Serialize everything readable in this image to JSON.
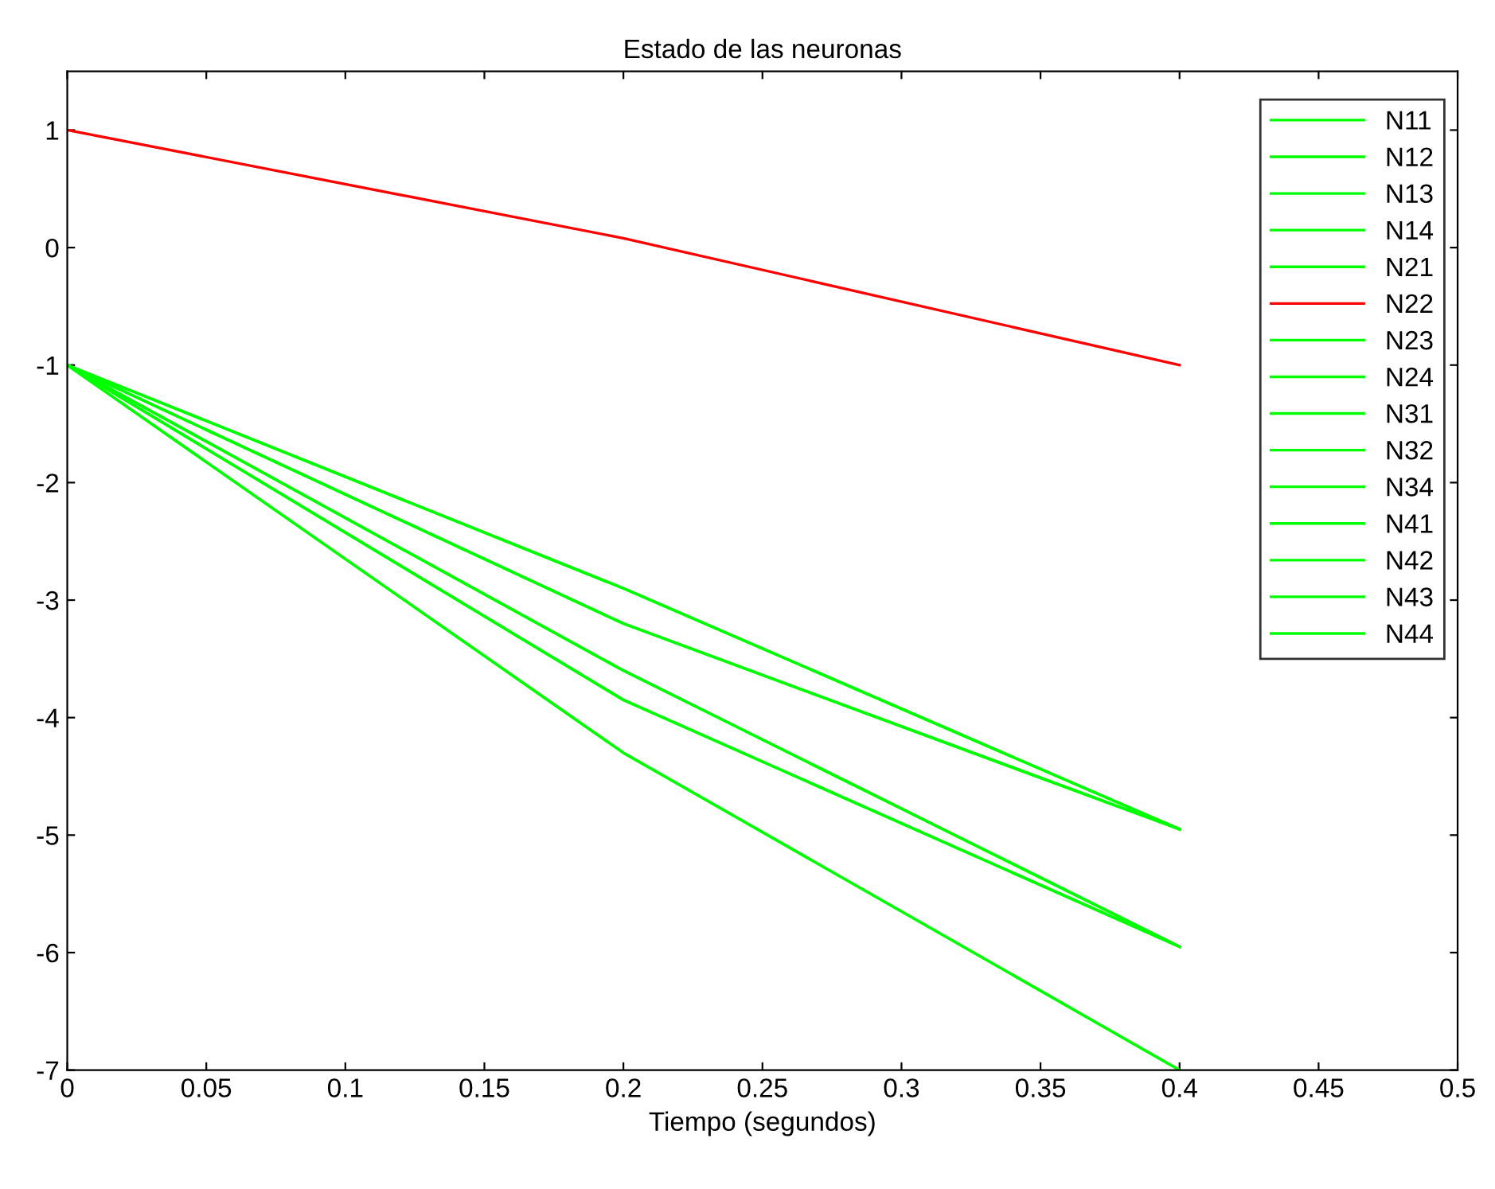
{
  "chart_data": {
    "type": "line",
    "title": "Estado de las neuronas",
    "xlabel": "Tiempo (segundos)",
    "xlim": [
      0,
      0.5
    ],
    "xticks": [
      0,
      0.05,
      0.1,
      0.15,
      0.2,
      0.25,
      0.3,
      0.35,
      0.4,
      0.45,
      0.5
    ],
    "ylim": [
      -7,
      1.5
    ],
    "yticks": [
      -7,
      -6,
      -5,
      -4,
      -3,
      -2,
      -1,
      0,
      1
    ],
    "x": [
      0,
      0.2,
      0.4
    ],
    "grid": false,
    "legend": "top right",
    "marker": "none",
    "line_style": "solid",
    "series": [
      {
        "name": "N11",
        "color": "#00ff00",
        "values": [
          -1,
          -2.9,
          -4.95
        ]
      },
      {
        "name": "N12",
        "color": "#00ff00",
        "values": [
          -1,
          -3.2,
          -4.95
        ]
      },
      {
        "name": "N13",
        "color": "#00ff00",
        "values": [
          -1,
          -3.6,
          -5.95
        ]
      },
      {
        "name": "N14",
        "color": "#00ff00",
        "values": [
          -1,
          -3.85,
          -5.95
        ]
      },
      {
        "name": "N21",
        "color": "#00ff00",
        "values": [
          -1,
          -4.3,
          -7
        ]
      },
      {
        "name": "N22",
        "color": "#ff0000",
        "values": [
          1,
          0.08,
          -1
        ]
      },
      {
        "name": "N23",
        "color": "#00ff00",
        "values": [
          -1,
          -2.9,
          -4.95
        ]
      },
      {
        "name": "N24",
        "color": "#00ff00",
        "values": [
          -1,
          -3.2,
          -4.95
        ]
      },
      {
        "name": "N31",
        "color": "#00ff00",
        "values": [
          -1,
          -3.6,
          -5.95
        ]
      },
      {
        "name": "N32",
        "color": "#00ff00",
        "values": [
          -1,
          -3.85,
          -5.95
        ]
      },
      {
        "name": "N34",
        "color": "#00ff00",
        "values": [
          -1,
          -2.9,
          -4.95
        ]
      },
      {
        "name": "N41",
        "color": "#00ff00",
        "values": [
          -1,
          -3.2,
          -4.95
        ]
      },
      {
        "name": "N42",
        "color": "#00ff00",
        "values": [
          -1,
          -3.6,
          -5.95
        ]
      },
      {
        "name": "N43",
        "color": "#00ff00",
        "values": [
          -1,
          -3.85,
          -5.95
        ]
      },
      {
        "name": "N44",
        "color": "#00ff00",
        "values": [
          -1,
          -4.3,
          -7
        ]
      }
    ]
  }
}
